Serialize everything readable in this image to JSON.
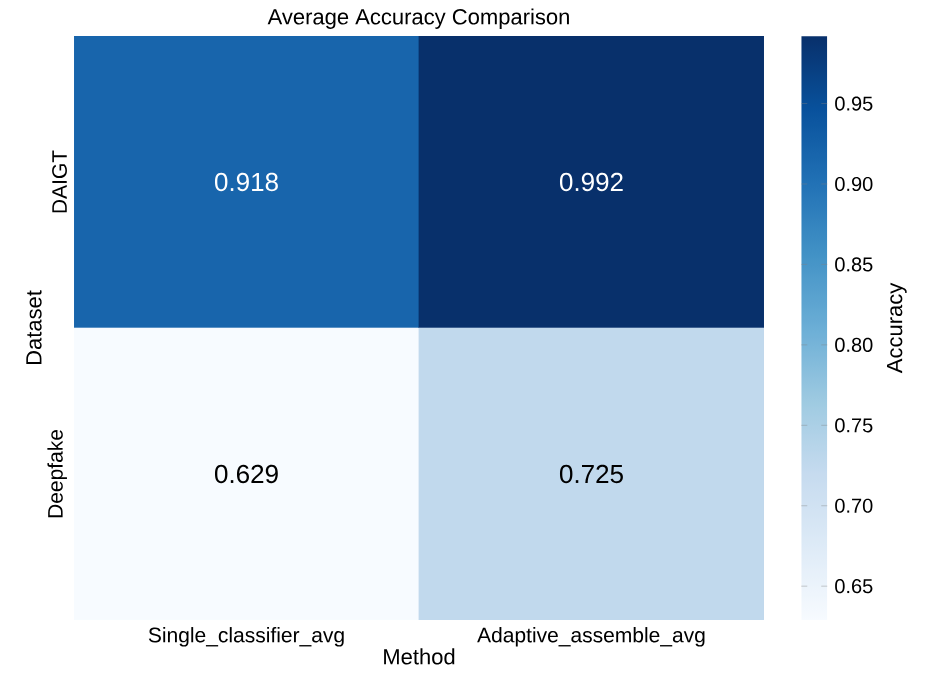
{
  "chart_data": {
    "type": "heatmap",
    "title": "Average Accuracy Comparison",
    "xlabel": "Method",
    "ylabel": "Dataset",
    "clabel": "Accuracy",
    "categories": [
      "Single_classifier_avg",
      "Adaptive_assemble_avg"
    ],
    "y_categories": [
      "DAIGT",
      "Deepfake"
    ],
    "cells": [
      [
        0.918,
        0.992
      ],
      [
        0.629,
        0.725
      ]
    ],
    "clim": [
      0.629,
      0.992
    ],
    "cticks": [
      0.65,
      {
        "value": 0.7,
        "label": "0.70"
      },
      0.75,
      {
        "value": 0.8,
        "label": "0.80"
      },
      0.85,
      {
        "value": 0.9,
        "label": "0.90"
      },
      0.95
    ],
    "data_labels": true
  }
}
